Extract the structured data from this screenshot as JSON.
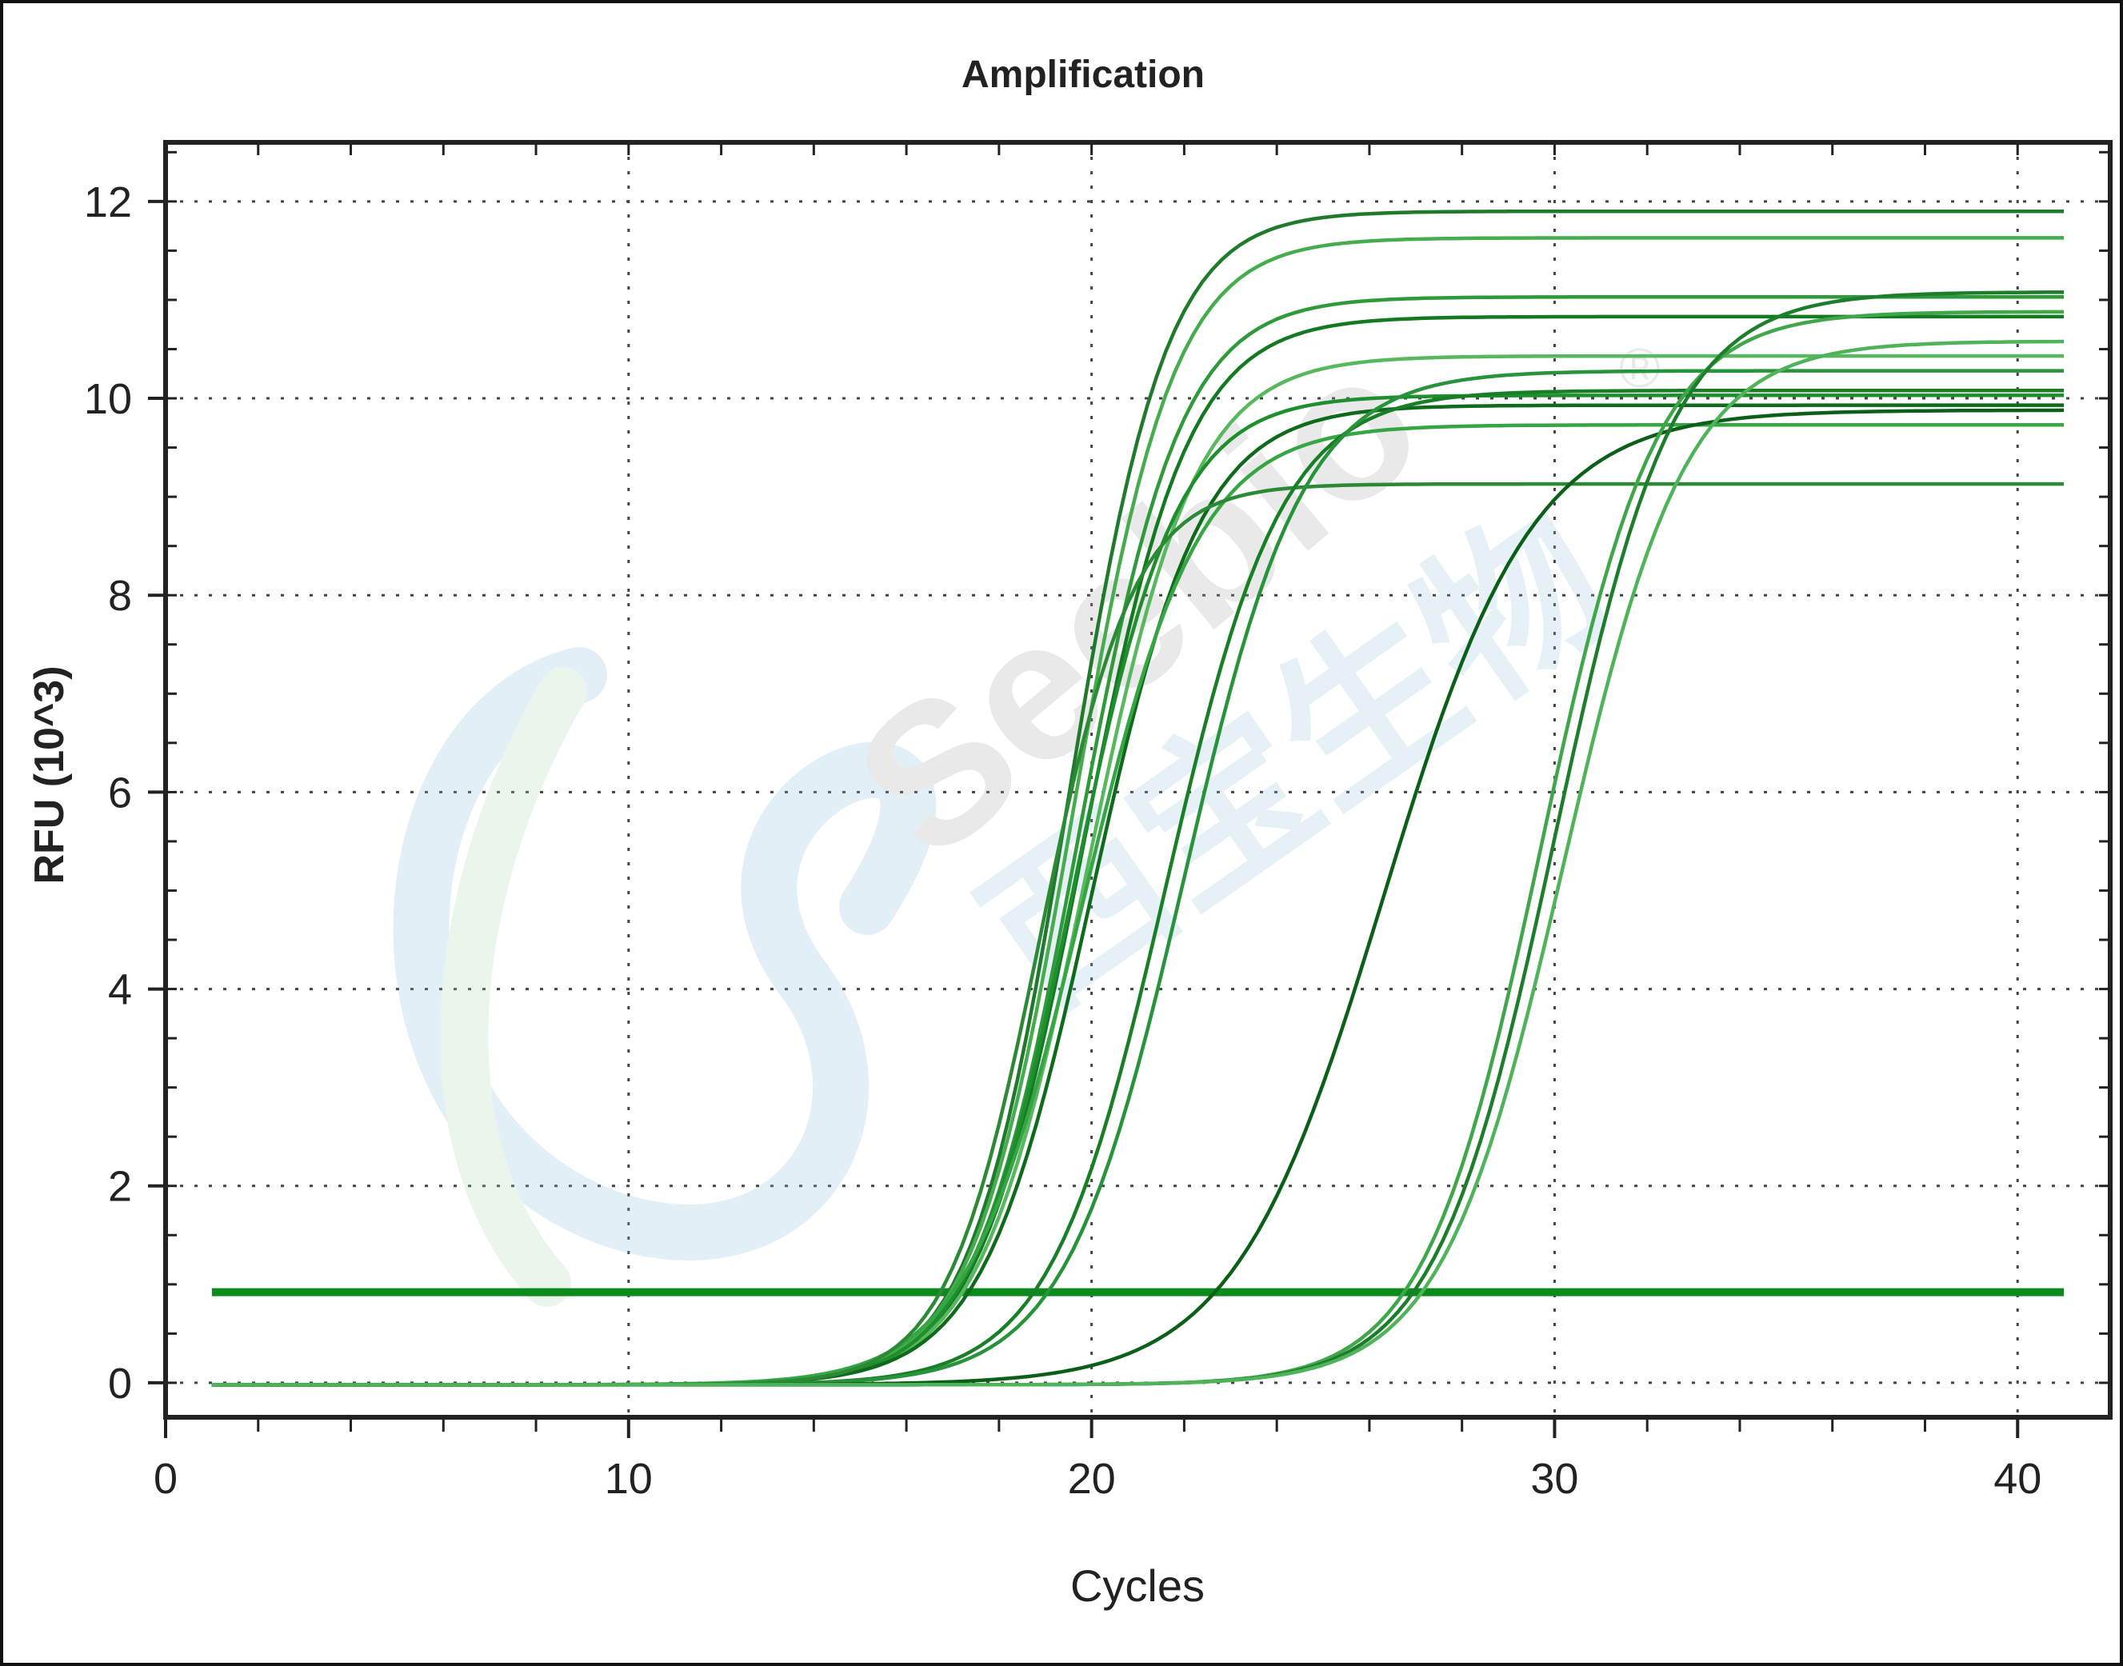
{
  "chart_data": {
    "type": "line",
    "title": "Amplification",
    "xlabel": "Cycles",
    "ylabel": "RFU (10^3)",
    "xlim": [
      0,
      42
    ],
    "ylim": [
      -0.35,
      12.6
    ],
    "xticks": [
      0,
      10,
      20,
      30,
      40
    ],
    "yticks": [
      0,
      2,
      4,
      6,
      8,
      10,
      12
    ],
    "grid": true,
    "threshold": 0.92,
    "x_range": [
      1,
      41
    ],
    "series": [
      {
        "values": [
          11.92
        ],
        "color": "#1f7a2c",
        "mid": 19.5,
        "slope": 0.95
      },
      {
        "values": [
          11.65
        ],
        "color": "#46ad4f",
        "mid": 19.6,
        "slope": 0.92
      },
      {
        "values": [
          11.05
        ],
        "color": "#2e9a3a",
        "mid": 19.7,
        "slope": 0.9
      },
      {
        "values": [
          10.85
        ],
        "color": "#137a22",
        "mid": 19.8,
        "slope": 0.88
      },
      {
        "values": [
          10.45
        ],
        "color": "#58b85e",
        "mid": 19.9,
        "slope": 0.86
      },
      {
        "values": [
          10.05
        ],
        "color": "#1f8f2e",
        "mid": 19.6,
        "slope": 0.9
      },
      {
        "values": [
          9.95
        ],
        "color": "#0f6b1c",
        "mid": 20.0,
        "slope": 0.85
      },
      {
        "values": [
          9.75
        ],
        "color": "#36a543",
        "mid": 19.8,
        "slope": 0.8
      },
      {
        "values": [
          9.15
        ],
        "color": "#2c8a36",
        "mid": 18.9,
        "slope": 1.0
      },
      {
        "values": [
          10.1
        ],
        "color": "#187f26",
        "mid": 21.6,
        "slope": 0.8
      },
      {
        "values": [
          10.3
        ],
        "color": "#27933a",
        "mid": 22.0,
        "slope": 0.78
      },
      {
        "values": [
          9.9
        ],
        "color": "#0c5f18",
        "mid": 26.3,
        "slope": 0.62
      },
      {
        "values": [
          10.9
        ],
        "color": "#3fa64a",
        "mid": 29.7,
        "slope": 0.8
      },
      {
        "values": [
          11.1
        ],
        "color": "#1c7d2b",
        "mid": 30.0,
        "slope": 0.78
      },
      {
        "values": [
          10.6
        ],
        "color": "#4fb35a",
        "mid": 30.2,
        "slope": 0.76
      }
    ]
  },
  "watermark": {
    "brand": "Seebio",
    "cn": "西宝生物",
    "mark": "®"
  }
}
